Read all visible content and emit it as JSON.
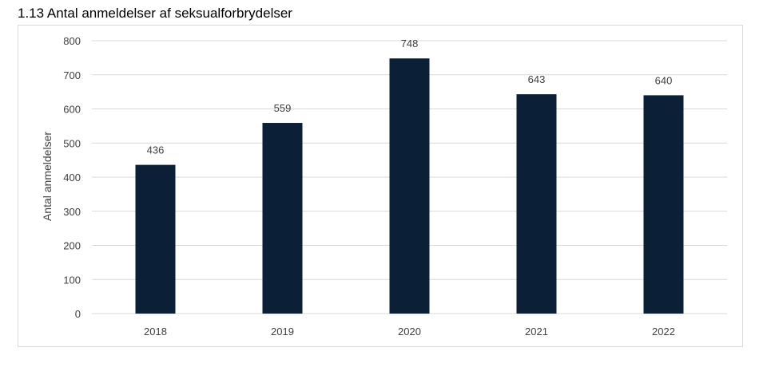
{
  "chart_data": {
    "type": "bar",
    "title": "1.13 Antal anmeldelser af seksualforbrydelser",
    "xlabel": "",
    "ylabel": "Antal anmeldelser",
    "categories": [
      "2018",
      "2019",
      "2020",
      "2021",
      "2022"
    ],
    "values": [
      436,
      559,
      748,
      643,
      640
    ],
    "ylim": [
      0,
      800
    ],
    "yticks": [
      0,
      100,
      200,
      300,
      400,
      500,
      600,
      700,
      800
    ],
    "grid": true,
    "legend": "none",
    "bar_color": "#0b1f36",
    "grid_color": "#d9d9d9",
    "text_color": "#404040"
  }
}
